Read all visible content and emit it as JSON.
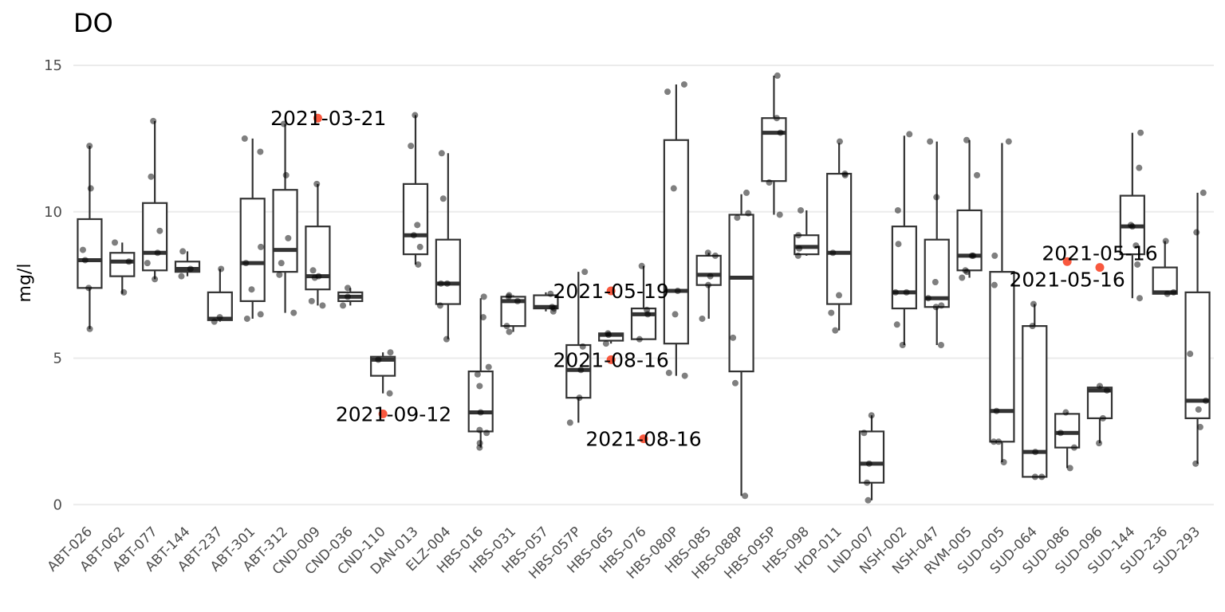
{
  "chart_data": {
    "type": "box",
    "title": "DO",
    "xlabel": "",
    "ylabel": "mg/l",
    "ylim": [
      -0.4,
      15.6
    ],
    "yticks": [
      0,
      5,
      10,
      15
    ],
    "grid": true,
    "legend": "none",
    "colors": {
      "points": "#000000",
      "box_line": "#333333",
      "outlier": "#f8583e",
      "grid": "#ebebeb"
    },
    "categories": [
      "ABT-026",
      "ABT-062",
      "ABT-077",
      "ABT-144",
      "ABT-237",
      "ABT-301",
      "ABT-312",
      "CND-009",
      "CND-036",
      "CND-110",
      "DAN-013",
      "ELZ-004",
      "HBS-016",
      "HBS-031",
      "HBS-057",
      "HBS-057P",
      "HBS-065",
      "HBS-076",
      "HBS-080P",
      "HBS-085",
      "HBS-088P",
      "HBS-095P",
      "HBS-098",
      "HOP-011",
      "LND-007",
      "NSH-002",
      "NSH-047",
      "RVM-005",
      "SUD-005",
      "SUD-064",
      "SUD-086",
      "SUD-096",
      "SUD-144",
      "SUD-236",
      "SUD-293"
    ],
    "boxes": [
      {
        "min": 6.0,
        "q1": 7.4,
        "median": 8.35,
        "q3": 9.75,
        "max": 12.25
      },
      {
        "min": 7.2,
        "q1": 7.8,
        "median": 8.3,
        "q3": 8.6,
        "max": 8.95
      },
      {
        "min": 7.7,
        "q1": 8.0,
        "median": 8.6,
        "q3": 10.3,
        "max": 13.1
      },
      {
        "min": 7.8,
        "q1": 7.95,
        "median": 8.05,
        "q3": 8.3,
        "max": 8.65
      },
      {
        "min": 6.25,
        "q1": 6.3,
        "median": 6.35,
        "q3": 7.25,
        "max": 8.05
      },
      {
        "min": 6.35,
        "q1": 6.95,
        "median": 8.25,
        "q3": 10.45,
        "max": 12.5
      },
      {
        "min": 6.55,
        "q1": 7.95,
        "median": 8.7,
        "q3": 10.75,
        "max": 13.0
      },
      {
        "min": 6.8,
        "q1": 7.35,
        "median": 7.8,
        "q3": 9.5,
        "max": 10.95
      },
      {
        "min": 6.8,
        "q1": 6.95,
        "median": 7.1,
        "q3": 7.25,
        "max": 7.4
      },
      {
        "min": 3.8,
        "q1": 4.4,
        "median": 4.95,
        "q3": 5.05,
        "max": 5.2
      },
      {
        "min": 8.2,
        "q1": 8.55,
        "median": 9.2,
        "q3": 10.95,
        "max": 13.3
      },
      {
        "min": 5.65,
        "q1": 6.85,
        "median": 7.55,
        "q3": 9.05,
        "max": 12.0
      },
      {
        "min": 1.95,
        "q1": 2.5,
        "median": 3.15,
        "q3": 4.55,
        "max": 7.05
      },
      {
        "min": 5.9,
        "q1": 6.1,
        "median": 6.95,
        "q3": 7.1,
        "max": 7.15
      },
      {
        "min": 6.6,
        "q1": 6.7,
        "median": 6.75,
        "q3": 7.15,
        "max": 7.25
      },
      {
        "min": 2.8,
        "q1": 3.65,
        "median": 4.6,
        "q3": 5.45,
        "max": 7.95
      },
      {
        "min": 5.5,
        "q1": 5.6,
        "median": 5.8,
        "q3": 5.85,
        "max": 5.85
      },
      {
        "min": 5.65,
        "q1": 5.65,
        "median": 6.5,
        "q3": 6.7,
        "max": 8.15
      },
      {
        "min": 4.4,
        "q1": 5.5,
        "median": 7.3,
        "q3": 12.45,
        "max": 14.35
      },
      {
        "min": 6.35,
        "q1": 7.5,
        "median": 7.85,
        "q3": 8.5,
        "max": 8.6
      },
      {
        "min": 0.3,
        "q1": 4.55,
        "median": 7.75,
        "q3": 9.9,
        "max": 10.6
      },
      {
        "min": 9.9,
        "q1": 11.05,
        "median": 12.7,
        "q3": 13.2,
        "max": 14.65
      },
      {
        "min": 8.5,
        "q1": 8.55,
        "median": 8.8,
        "q3": 9.2,
        "max": 10.05
      },
      {
        "min": 5.95,
        "q1": 6.85,
        "median": 8.6,
        "q3": 11.3,
        "max": 12.35
      },
      {
        "min": 0.15,
        "q1": 0.75,
        "median": 1.4,
        "q3": 2.5,
        "max": 3.05
      },
      {
        "min": 5.45,
        "q1": 6.7,
        "median": 7.25,
        "q3": 9.5,
        "max": 12.6
      },
      {
        "min": 5.45,
        "q1": 6.75,
        "median": 7.05,
        "q3": 9.05,
        "max": 12.4
      },
      {
        "min": 7.75,
        "q1": 8.0,
        "median": 8.5,
        "q3": 10.05,
        "max": 12.45
      },
      {
        "min": 1.45,
        "q1": 2.15,
        "median": 3.2,
        "q3": 7.95,
        "max": 12.35
      },
      {
        "min": 0.95,
        "q1": 0.95,
        "median": 1.8,
        "q3": 6.1,
        "max": 6.85
      },
      {
        "min": 1.25,
        "q1": 1.95,
        "median": 2.45,
        "q3": 3.1,
        "max": 3.15
      },
      {
        "min": 2.1,
        "q1": 2.95,
        "median": 3.9,
        "q3": 4.0,
        "max": 4.05
      },
      {
        "min": 7.05,
        "q1": 8.55,
        "median": 9.5,
        "q3": 10.55,
        "max": 12.7
      },
      {
        "min": 7.2,
        "q1": 7.2,
        "median": 7.25,
        "q3": 8.1,
        "max": 9.0
      },
      {
        "min": 1.4,
        "q1": 2.95,
        "median": 3.55,
        "q3": 7.25,
        "max": 10.65
      }
    ],
    "points": [
      [
        12.25,
        10.8,
        8.7,
        8.35,
        7.4,
        6.0
      ],
      [
        8.95,
        8.3,
        7.25
      ],
      [
        13.1,
        11.2,
        9.35,
        8.6,
        8.25,
        7.7
      ],
      [
        8.65,
        8.05,
        7.8
      ],
      [
        8.05,
        6.4,
        6.25
      ],
      [
        12.5,
        12.05,
        8.8,
        8.25,
        7.35,
        6.5,
        6.35
      ],
      [
        13.0,
        11.25,
        9.1,
        8.25,
        7.85,
        6.55
      ],
      [
        10.95,
        8.0,
        7.8,
        7.75,
        6.95,
        6.8
      ],
      [
        7.4,
        7.1,
        6.8
      ],
      [
        5.2,
        4.95,
        3.8
      ],
      [
        13.3,
        12.25,
        9.55,
        9.2,
        8.8,
        8.2
      ],
      [
        12.0,
        10.45,
        7.55,
        7.55,
        6.8,
        5.65
      ],
      [
        7.1,
        6.4,
        4.7,
        4.45,
        4.05,
        3.15,
        2.55,
        2.45,
        2.1,
        1.95
      ],
      [
        7.15,
        7.1,
        6.95,
        6.1,
        5.9
      ],
      [
        7.2,
        6.75,
        6.7,
        6.6
      ],
      [
        7.95,
        5.4,
        4.6,
        3.65,
        2.8
      ],
      [
        5.85,
        5.8,
        5.5
      ],
      [
        8.15,
        6.65,
        6.5,
        5.65
      ],
      [
        14.35,
        14.1,
        10.8,
        7.3,
        6.5,
        4.5,
        4.4
      ],
      [
        8.6,
        8.5,
        7.8,
        7.5,
        6.35
      ],
      [
        10.65,
        9.95,
        9.8,
        5.7,
        4.15,
        0.3
      ],
      [
        14.65,
        13.2,
        12.7,
        11.0,
        9.9
      ],
      [
        10.05,
        9.2,
        8.75,
        8.5
      ],
      [
        12.4,
        11.3,
        11.25,
        8.6,
        7.15,
        6.55,
        5.95
      ],
      [
        3.05,
        2.45,
        1.4,
        0.75,
        0.15
      ],
      [
        12.65,
        10.05,
        8.9,
        7.25,
        7.25,
        6.15,
        5.45
      ],
      [
        12.4,
        10.5,
        7.6,
        7.05,
        6.8,
        6.75,
        5.45
      ],
      [
        12.45,
        11.25,
        8.5,
        8.5,
        8.0,
        7.95,
        7.75
      ],
      [
        12.4,
        8.5,
        7.5,
        3.2,
        2.15,
        2.15,
        1.45
      ],
      [
        6.85,
        6.1,
        1.8,
        0.95,
        0.95
      ],
      [
        3.15,
        2.45,
        1.95,
        1.25
      ],
      [
        4.05,
        3.9,
        2.95,
        2.1
      ],
      [
        12.7,
        11.5,
        9.55,
        9.5,
        8.85,
        8.2,
        7.05
      ],
      [
        9.0,
        7.25,
        7.2
      ],
      [
        10.65,
        9.3,
        5.15,
        3.55,
        3.25,
        2.65,
        1.4
      ]
    ],
    "outliers": [
      {
        "category": "CND-009",
        "value": 13.2,
        "label": "2021-03-21",
        "side": "left",
        "dy": 0
      },
      {
        "category": "CND-110",
        "value": 3.1,
        "label": "2021-09-12",
        "side": "left",
        "dy": 0
      },
      {
        "category": "HBS-065",
        "value": 7.3,
        "label": "2021-05-19",
        "side": "center",
        "dy": 0
      },
      {
        "category": "HBS-065",
        "value": 4.95,
        "label": "2021-08-16",
        "side": "center",
        "dy": 0
      },
      {
        "category": "HBS-076",
        "value": 2.25,
        "label": "2021-08-16",
        "side": "center",
        "dy": 0
      },
      {
        "category": "SUD-086",
        "value": 8.3,
        "label": "2021-05-16",
        "side": "center",
        "dy": -0.6
      },
      {
        "category": "SUD-096",
        "value": 8.1,
        "label": "2021-05-16",
        "side": "center",
        "dy": 0.5
      }
    ]
  }
}
